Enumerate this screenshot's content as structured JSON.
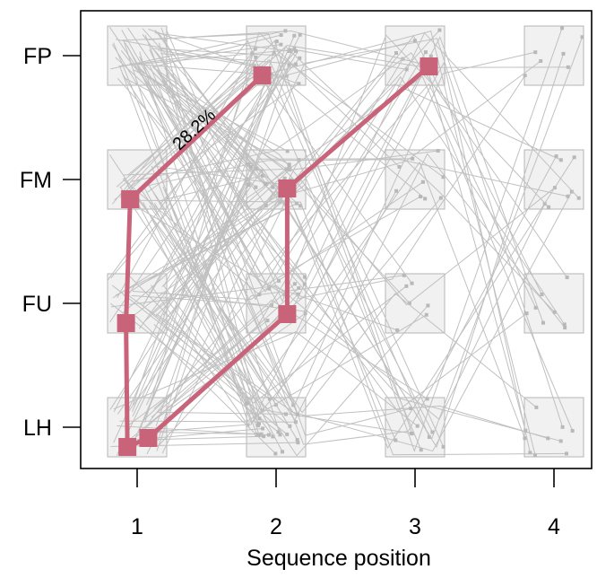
{
  "chart_data": {
    "type": "scatter",
    "xlabel": "Sequence position",
    "x_ticks": [
      1,
      2,
      3,
      4
    ],
    "y_categories": [
      "LH",
      "FU",
      "FM",
      "FP"
    ],
    "highlight_color": "#c9637a",
    "background_line_color": "#c0c0c0",
    "box_fill": "#f1f1f1",
    "box_stroke": "#b5b5b5",
    "highlighted_sequences": [
      {
        "points": [
          [
            0.95,
            "FM"
          ],
          [
            0.92,
            "FU"
          ],
          [
            0.93,
            "LH"
          ],
          [
            1.08,
            "LH"
          ],
          [
            2.08,
            "FU"
          ],
          [
            2.08,
            "FM"
          ],
          [
            3.1,
            "FP"
          ]
        ]
      },
      {
        "points": [
          [
            0.95,
            "FM"
          ],
          [
            1.9,
            "FP"
          ]
        ],
        "label": "28.2%"
      }
    ]
  }
}
